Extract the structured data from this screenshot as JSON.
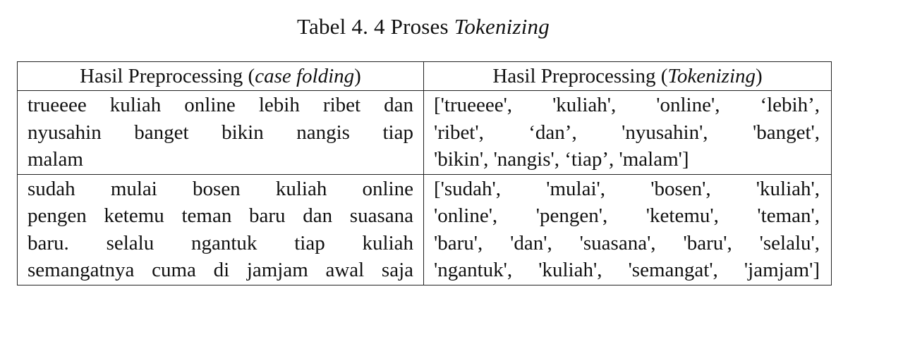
{
  "caption": {
    "prefix": "Tabel 4. 4 Proses ",
    "italic": "Tokenizing"
  },
  "table": {
    "headers": [
      {
        "before": "Hasil Preprocessing (",
        "italic": "case folding",
        "after": ")"
      },
      {
        "before": "Hasil Preprocessing (",
        "italic": "Tokenizing",
        "after": ")"
      }
    ],
    "rows": [
      {
        "case_folding_lines": [
          "trueeee kuliah online lebih ribet dan",
          "nyusahin banget bikin nangis tiap",
          "malam"
        ],
        "tokenizing_lines": [
          "['trueeee', 'kuliah', 'online', ‘lebih’,",
          "'ribet', ‘dan’, 'nyusahin', 'banget',",
          "'bikin', 'nangis', ‘tiap’, 'malam']"
        ]
      },
      {
        "case_folding_lines": [
          "sudah mulai bosen kuliah online",
          "pengen ketemu teman baru dan suasana",
          "baru. selalu ngantuk tiap kuliah",
          "semangatnya cuma di jamjam awal saja"
        ],
        "tokenizing_lines": [
          "['sudah', 'mulai', 'bosen', 'kuliah',",
          "'online', 'pengen', 'ketemu', 'teman',",
          "'baru', 'dan', 'suasana', 'baru', 'selalu',",
          "'ngantuk', 'kuliah', 'semangat', 'jamjam']"
        ]
      }
    ]
  }
}
